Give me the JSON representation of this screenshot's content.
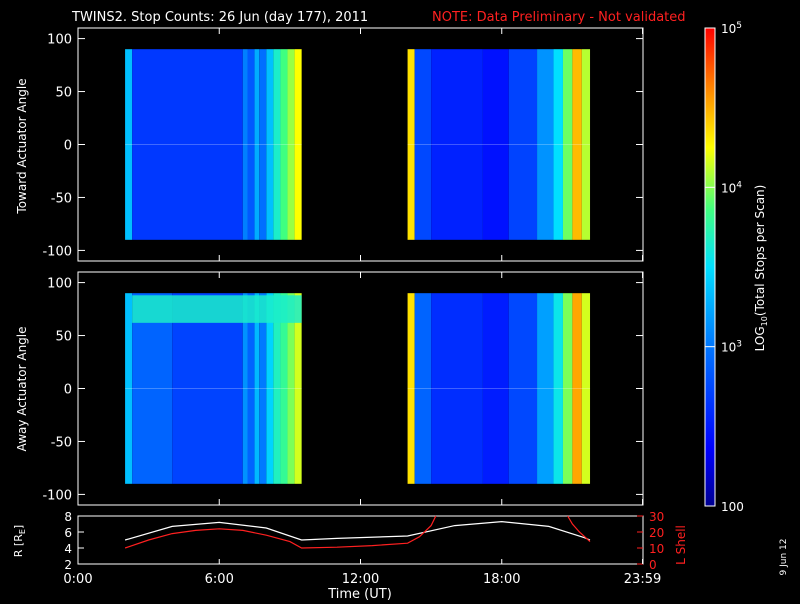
{
  "title": "TWINS2. Stop Counts: 26 Jun (day 177), 2011",
  "note": "NOTE: Data Preliminary - Not validated",
  "date_stamp": "9 Jun 12",
  "colors": {
    "note": "#ff2020",
    "lshell": "#ff2020",
    "radius": "#ffffff",
    "axes": "#ffffff",
    "background": "#000000"
  },
  "chart_data": [
    {
      "type": "heatmap",
      "ylabel": "Toward Actuator Angle",
      "ylim": [
        -110,
        110
      ],
      "yticks": [
        100,
        50,
        0,
        -50,
        -100
      ],
      "xlim": [
        0,
        24
      ],
      "segments": [
        [
          2.0,
          9.5
        ],
        [
          14.0,
          21.75
        ]
      ],
      "angle_range": [
        -90,
        90
      ],
      "columns": [
        {
          "t0": 2.0,
          "t1": 2.3,
          "level": 0.45
        },
        {
          "t0": 2.3,
          "t1": 7.0,
          "level": 0.22
        },
        {
          "t0": 7.0,
          "t1": 7.2,
          "level": 0.35
        },
        {
          "t0": 7.2,
          "t1": 7.5,
          "level": 0.28
        },
        {
          "t0": 7.5,
          "t1": 7.7,
          "level": 0.42
        },
        {
          "t0": 7.7,
          "t1": 8.0,
          "level": 0.32
        },
        {
          "t0": 8.0,
          "t1": 8.3,
          "level": 0.45
        },
        {
          "t0": 8.3,
          "t1": 8.6,
          "level": 0.55
        },
        {
          "t0": 8.6,
          "t1": 8.9,
          "level": 0.62
        },
        {
          "t0": 8.9,
          "t1": 9.2,
          "level": 0.68
        },
        {
          "t0": 9.2,
          "t1": 9.5,
          "level": 0.75
        },
        {
          "t0": 14.0,
          "t1": 14.3,
          "level": 0.78
        },
        {
          "t0": 14.3,
          "t1": 15.0,
          "level": 0.25
        },
        {
          "t0": 15.0,
          "t1": 17.2,
          "level": 0.18
        },
        {
          "t0": 17.2,
          "t1": 18.3,
          "level": 0.15
        },
        {
          "t0": 18.3,
          "t1": 19.5,
          "level": 0.24
        },
        {
          "t0": 19.5,
          "t1": 20.2,
          "level": 0.38
        },
        {
          "t0": 20.2,
          "t1": 20.6,
          "level": 0.5
        },
        {
          "t0": 20.6,
          "t1": 21.0,
          "level": 0.65
        },
        {
          "t0": 21.0,
          "t1": 21.4,
          "level": 0.82
        },
        {
          "t0": 21.4,
          "t1": 21.75,
          "level": 0.7
        }
      ]
    },
    {
      "type": "heatmap",
      "ylabel": "Away Actuator Angle",
      "ylim": [
        -110,
        110
      ],
      "yticks": [
        100,
        50,
        0,
        -50,
        -100
      ],
      "xlim": [
        0,
        24
      ],
      "segments": [
        [
          2.0,
          9.5
        ],
        [
          14.0,
          21.75
        ]
      ],
      "angle_range": [
        -90,
        90
      ],
      "columns": [
        {
          "t0": 2.0,
          "t1": 2.3,
          "level": 0.45
        },
        {
          "t0": 2.3,
          "t1": 4.0,
          "level": 0.3
        },
        {
          "t0": 4.0,
          "t1": 7.0,
          "level": 0.24
        },
        {
          "t0": 7.0,
          "t1": 7.2,
          "level": 0.38
        },
        {
          "t0": 7.2,
          "t1": 7.5,
          "level": 0.3
        },
        {
          "t0": 7.5,
          "t1": 7.7,
          "level": 0.44
        },
        {
          "t0": 7.7,
          "t1": 8.0,
          "level": 0.34
        },
        {
          "t0": 8.0,
          "t1": 8.3,
          "level": 0.48
        },
        {
          "t0": 8.3,
          "t1": 8.6,
          "level": 0.56
        },
        {
          "t0": 8.6,
          "t1": 8.9,
          "level": 0.6
        },
        {
          "t0": 8.9,
          "t1": 9.2,
          "level": 0.66
        },
        {
          "t0": 9.2,
          "t1": 9.5,
          "level": 0.72
        },
        {
          "t0": 14.0,
          "t1": 14.3,
          "level": 0.78
        },
        {
          "t0": 14.3,
          "t1": 15.0,
          "level": 0.3
        },
        {
          "t0": 15.0,
          "t1": 17.2,
          "level": 0.2
        },
        {
          "t0": 17.2,
          "t1": 18.3,
          "level": 0.17
        },
        {
          "t0": 18.3,
          "t1": 19.5,
          "level": 0.25
        },
        {
          "t0": 19.5,
          "t1": 20.2,
          "level": 0.4
        },
        {
          "t0": 20.2,
          "t1": 20.6,
          "level": 0.52
        },
        {
          "t0": 20.6,
          "t1": 21.0,
          "level": 0.66
        },
        {
          "t0": 21.0,
          "t1": 21.4,
          "level": 0.84
        },
        {
          "t0": 21.4,
          "t1": 21.75,
          "level": 0.72
        }
      ],
      "band": {
        "angle_min": 62,
        "angle_max": 88,
        "level": 0.55,
        "t0": 2.3,
        "t1": 9.5
      }
    },
    {
      "type": "line",
      "xlabel": "Time (UT)",
      "ylabel": "R [R",
      "ylabel_sub": "E",
      "ylabel_end": "]",
      "y2label": "L Shell",
      "xlim": [
        0,
        24
      ],
      "ylim": [
        2,
        8
      ],
      "y2lim": [
        0,
        30
      ],
      "yticks": [
        8,
        6,
        4,
        2
      ],
      "y2ticks": [
        30,
        20,
        10,
        0
      ],
      "xticks": [
        {
          "t": 0,
          "label": "0:00"
        },
        {
          "t": 6,
          "label": "6:00"
        },
        {
          "t": 12,
          "label": "12:00"
        },
        {
          "t": 18,
          "label": "18:00"
        },
        {
          "t": 23.98,
          "label": "23:59"
        }
      ],
      "series": [
        {
          "role": "radius",
          "axis": "left",
          "x": [
            2.0,
            4.0,
            6.0,
            8.0,
            9.5,
            11.0,
            14.0,
            16.0,
            18.0,
            20.0,
            21.5,
            21.75
          ],
          "y": [
            5.0,
            6.7,
            7.2,
            6.5,
            5.0,
            5.2,
            5.5,
            6.8,
            7.3,
            6.7,
            5.3,
            5.0
          ]
        },
        {
          "role": "lshell",
          "axis": "right",
          "x": [
            2.0,
            3.0,
            4.0,
            5.0,
            6.0,
            7.0,
            8.0,
            9.0,
            9.5,
            11.0,
            12.5,
            14.0,
            14.5,
            15.0,
            15.2
          ],
          "y": [
            10.0,
            15.0,
            19.0,
            21.0,
            22.0,
            21.0,
            18.0,
            14.0,
            10.0,
            10.5,
            11.5,
            13.0,
            17.0,
            24.0,
            30.0
          ]
        },
        {
          "role": "lshell",
          "axis": "right",
          "x": [
            20.8,
            21.0,
            21.3,
            21.75
          ],
          "y": [
            30.0,
            25.0,
            20.0,
            14.0
          ]
        }
      ]
    }
  ],
  "colorbar": {
    "label_main": "LOG",
    "label_sub": "10",
    "label_rest": "(Total Stops per Scan)",
    "ticks": [
      {
        "level": 1.0,
        "label": "10",
        "exp": "5"
      },
      {
        "level": 0.6667,
        "label": "10",
        "exp": "4"
      },
      {
        "level": 0.3333,
        "label": "10",
        "exp": "3"
      },
      {
        "level": 0.0,
        "label": "100",
        "exp": ""
      }
    ]
  }
}
